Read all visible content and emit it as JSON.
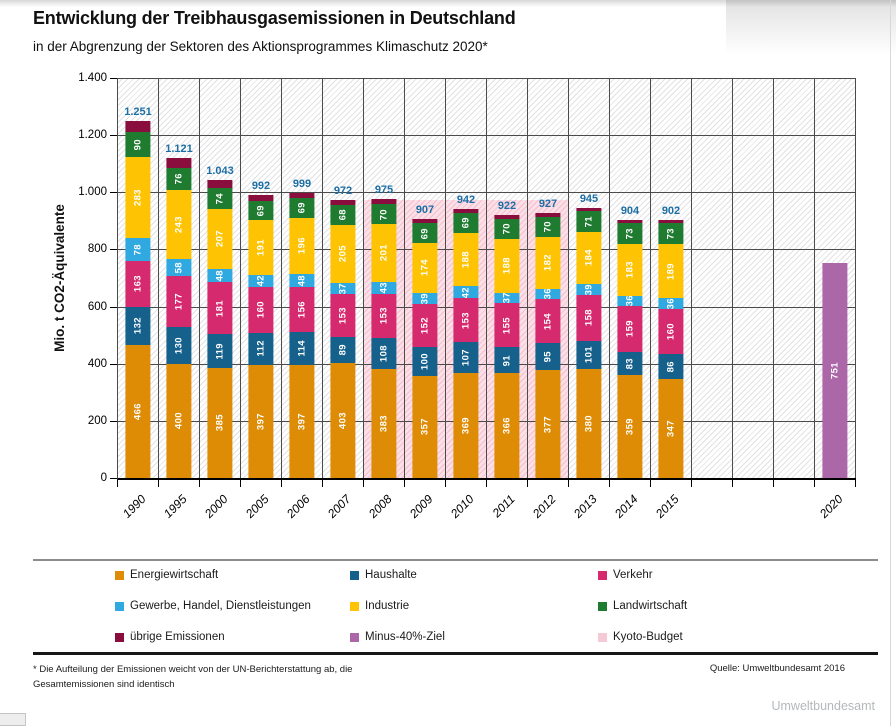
{
  "header": {
    "title": "Entwicklung der Treibhausgasemissionen in Deutschland",
    "subtitle": "in der Abgrenzung der Sektoren des Aktionsprogrammes Klimaschutz 2020*"
  },
  "chart_data": {
    "type": "bar",
    "stacked": true,
    "title": "Entwicklung der Treibhausgasemissionen in Deutschland",
    "subtitle": "in der Abgrenzung der Sektoren des Aktionsprogrammes Klimaschutz 2020*",
    "ylabel": "Mio. t CO2-Äquivalente",
    "xlabel": "",
    "ylim": [
      0,
      1400
    ],
    "ytick_labels": [
      "0",
      "200",
      "400",
      "600",
      "800",
      "1.000",
      "1.200",
      "1.400"
    ],
    "grid": true,
    "legend_position": "bottom",
    "categories": [
      "1990",
      "1995",
      "2000",
      "2005",
      "2006",
      "2007",
      "2008",
      "2009",
      "2010",
      "2011",
      "2012",
      "2013",
      "2014",
      "2015"
    ],
    "series": [
      {
        "name": "Energiewirtschaft",
        "color": "#DE8C05",
        "labels_visible": true,
        "values": [
          466,
          400,
          385,
          397,
          397,
          403,
          383,
          357,
          369,
          366,
          377,
          380,
          359,
          347
        ]
      },
      {
        "name": "Haushalte",
        "color": "#16608C",
        "labels_visible": true,
        "values": [
          132,
          130,
          119,
          112,
          114,
          89,
          108,
          100,
          107,
          91,
          95,
          101,
          83,
          86
        ]
      },
      {
        "name": "Verkehr",
        "color": "#D52A6E",
        "labels_visible": true,
        "values": [
          163,
          177,
          181,
          160,
          156,
          153,
          153,
          152,
          153,
          155,
          154,
          158,
          159,
          160
        ]
      },
      {
        "name": "Gewerbe, Handel, Dienstleistungen",
        "color": "#30A8E0",
        "labels_visible": true,
        "values": [
          78,
          58,
          48,
          42,
          48,
          37,
          43,
          39,
          42,
          37,
          36,
          39,
          36,
          36
        ]
      },
      {
        "name": "Industrie",
        "color": "#FEC303",
        "labels_visible": true,
        "values": [
          283,
          243,
          207,
          191,
          196,
          205,
          201,
          174,
          188,
          188,
          182,
          184,
          183,
          189
        ]
      },
      {
        "name": "Landwirtschaft",
        "color": "#1E7B30",
        "labels_visible": true,
        "values": [
          90,
          76,
          74,
          69,
          69,
          68,
          70,
          69,
          69,
          70,
          70,
          71,
          73,
          73
        ]
      },
      {
        "name": "übrige Emissionen",
        "color": "#890D3D",
        "labels_visible": false,
        "values": [
          39,
          37,
          29,
          21,
          19,
          17,
          17,
          16,
          14,
          15,
          13,
          12,
          11,
          11
        ]
      }
    ],
    "totals_display": [
      "1.251",
      "1.121",
      "1.043",
      "992",
      "999",
      "972",
      "975",
      "907",
      "942",
      "922",
      "927",
      "945",
      "904",
      "902"
    ],
    "target_bar": {
      "category": "2020",
      "name": "Minus-40%-Ziel",
      "value": 751,
      "color": "#AC67A9"
    },
    "kyoto_budget": {
      "name": "Kyoto-Budget",
      "start_category": "2008",
      "end_category": "2012",
      "top_value": 973,
      "fill": "#FBE0E8",
      "stripe": "#F4BECD"
    },
    "layout": {
      "columns_total": 18,
      "category_start_column": 0,
      "target_column": 17,
      "band_columns": [
        6,
        10
      ]
    }
  },
  "legend": {
    "items": [
      {
        "label": "Energiewirtschaft",
        "color": "#DE8C05"
      },
      {
        "label": "Haushalte",
        "color": "#16608C"
      },
      {
        "label": "Verkehr",
        "color": "#D52A6E"
      },
      {
        "label": "Gewerbe, Handel, Dienstleistungen",
        "color": "#30A8E0"
      },
      {
        "label": "Industrie",
        "color": "#FEC303"
      },
      {
        "label": "Landwirtschaft",
        "color": "#1E7B30"
      },
      {
        "label": "übrige Emissionen",
        "color": "#890D3D"
      },
      {
        "label": "Minus-40%-Ziel",
        "color": "#AC67A9"
      },
      {
        "label": "Kyoto-Budget",
        "color": "#F6C9D6"
      }
    ]
  },
  "footer": {
    "footnote_line1": "* Die Aufteilung der Emissionen weicht von der UN-Berichterstattung ab, die",
    "footnote_line2": "Gesamtemissionen sind identisch",
    "source": "Quelle: Umweltbundesamt 2016",
    "watermark": "Umweltbundesamt"
  }
}
